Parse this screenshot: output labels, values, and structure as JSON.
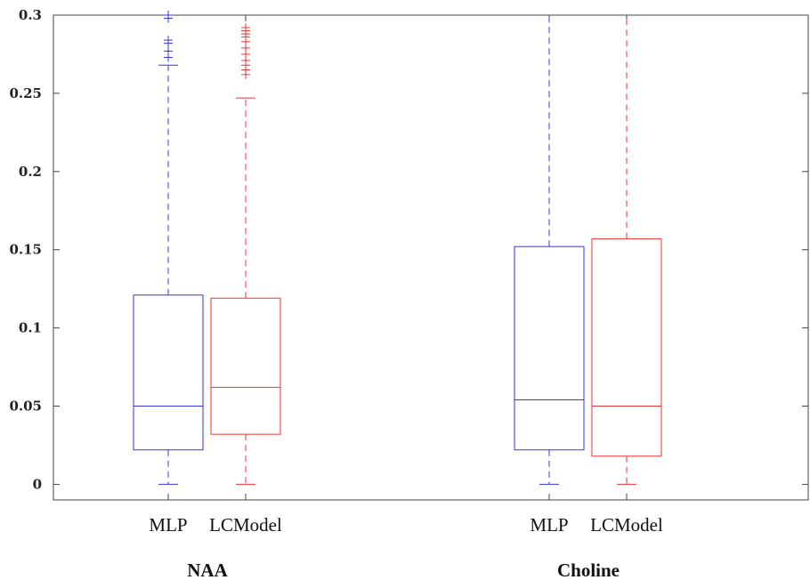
{
  "chart_data": {
    "type": "boxplot",
    "title": "",
    "xlabel": "",
    "ylabel": "",
    "ylim": [
      -0.01,
      0.3
    ],
    "yticks": [
      0,
      0.05,
      0.1,
      0.15,
      0.2,
      0.25,
      0.3
    ],
    "ytick_labels": [
      "0",
      "0.05",
      "0.1",
      "0.15",
      "0.2",
      "0.25",
      "0.3"
    ],
    "grid": false,
    "groups": [
      {
        "name": "NAA",
        "boxes": [
          {
            "label": "MLP",
            "color": "#3333ee",
            "whisker_low": 0.0,
            "q1": 0.022,
            "median": 0.05,
            "q3": 0.121,
            "whisker_high": 0.268,
            "outliers": [
              0.273,
              0.277,
              0.282,
              0.284,
              0.298,
              0.3
            ]
          },
          {
            "label": "LCModel",
            "color": "#ee3333",
            "whisker_low": 0.0,
            "q1": 0.032,
            "median": 0.062,
            "q3": 0.119,
            "whisker_high": 0.247,
            "outliers": [
              0.262,
              0.265,
              0.268,
              0.271,
              0.275,
              0.279,
              0.283,
              0.286,
              0.288,
              0.29,
              0.292
            ]
          }
        ]
      },
      {
        "name": "Choline",
        "boxes": [
          {
            "label": "MLP",
            "color": "#3333ee",
            "whisker_low": 0.0,
            "q1": 0.022,
            "median": 0.054,
            "q3": 0.152,
            "whisker_high": 0.3,
            "outliers": []
          },
          {
            "label": "LCModel",
            "color": "#ee3333",
            "whisker_low": 0.0,
            "q1": 0.018,
            "median": 0.05,
            "q3": 0.157,
            "whisker_high": 0.3,
            "outliers": []
          }
        ]
      }
    ]
  }
}
